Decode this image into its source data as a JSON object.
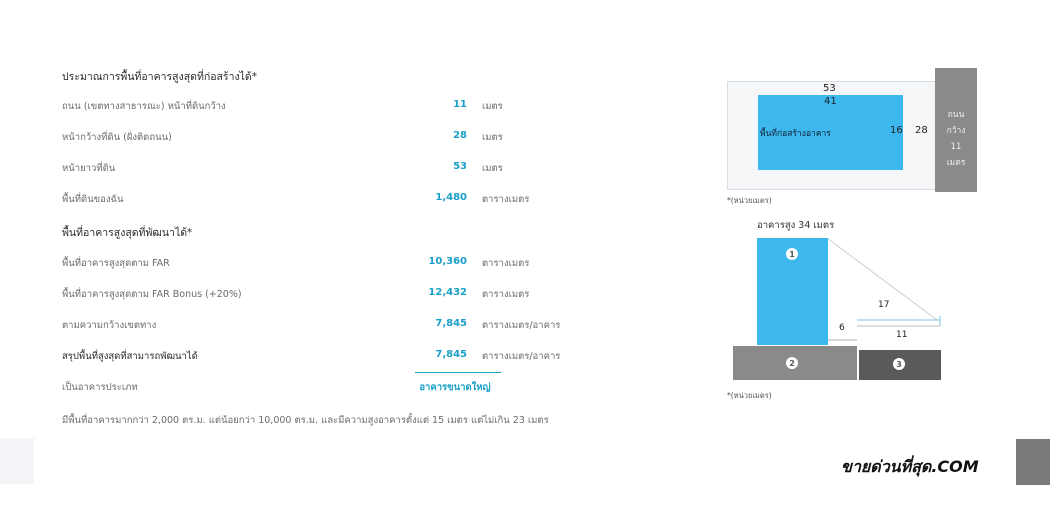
{
  "colors": {
    "accent": "#1aa0c8",
    "blue_block": "#3db8ef",
    "gray": "#8a8a8a",
    "dark_gray": "#5a5a5a"
  },
  "section1": {
    "title": "ประมาณการพื้นที่อาคารสูงสุดที่ก่อสร้างได้*"
  },
  "rows1": [
    {
      "label": "ถนน (เขตทางสาธารณะ) หน้าที่ดินกว้าง",
      "value": "11",
      "unit": "เมตร"
    },
    {
      "label": "หน้ากว้างที่ดิน (ฝั่งติดถนน)",
      "value": "28",
      "unit": "เมตร"
    },
    {
      "label": "หน้ายาวที่ดิน",
      "value": "53",
      "unit": "เมตร"
    },
    {
      "label": "พื้นที่ดินของฉัน",
      "value": "1,480",
      "unit": "ตารางเมตร"
    }
  ],
  "section2": {
    "title": "พื้นที่อาคารสูงสุดที่พัฒนาได้*"
  },
  "rows2": [
    {
      "label": "พื้นที่อาคารสูงสุดตาม FAR",
      "value": "10,360",
      "unit": "ตารางเมตร"
    },
    {
      "label": "พื้นที่อาคารสูงสุดตาม FAR Bonus (+20%)",
      "value": "12,432",
      "unit": "ตารางเมตร"
    },
    {
      "label": "ตามความกว้างเขตทาง",
      "value": "7,845",
      "unit": "ตารางเมตร/อาคาร"
    },
    {
      "label": "สรุปพื้นที่สูงสุดที่สามารถพัฒนาได้",
      "value": "7,845",
      "unit": "ตารางเมตร/อาคาร"
    }
  ],
  "building_type": {
    "label": "เป็นอาคารประเภท",
    "value": "อาคารขนาดใหญ่"
  },
  "footnote": "มีพื้นที่อาคารมากกว่า 2,000 ตร.ม. แต่น้อยกว่า 10,000 ตร.ม. และมีความสูงอาคารตั้งแต่ 15 เมตร แต่ไม่เกิน 23 เมตร",
  "plan": {
    "top_dim": "53",
    "inner_dim": "41",
    "inner_label": "พื้นที่ก่อสร้างอาคาร",
    "side_dim_inner": "16",
    "side_dim_outer": "28",
    "road_label_1": "ถนน",
    "road_label_2": "กว้าง",
    "road_label_3": "11",
    "road_label_4": "เมตร",
    "unit_note": "*(หน่วยเมตร)"
  },
  "section_view": {
    "height_label": "อาคารสูง 34 เมตร",
    "badge1": "1",
    "badge2": "2",
    "badge3": "3",
    "dim_17": "17",
    "dim_6": "6",
    "dim_11": "11",
    "unit_note": "*(หน่วยเมตร)"
  },
  "watermark": "ขายด่วนที่สุด.COM"
}
